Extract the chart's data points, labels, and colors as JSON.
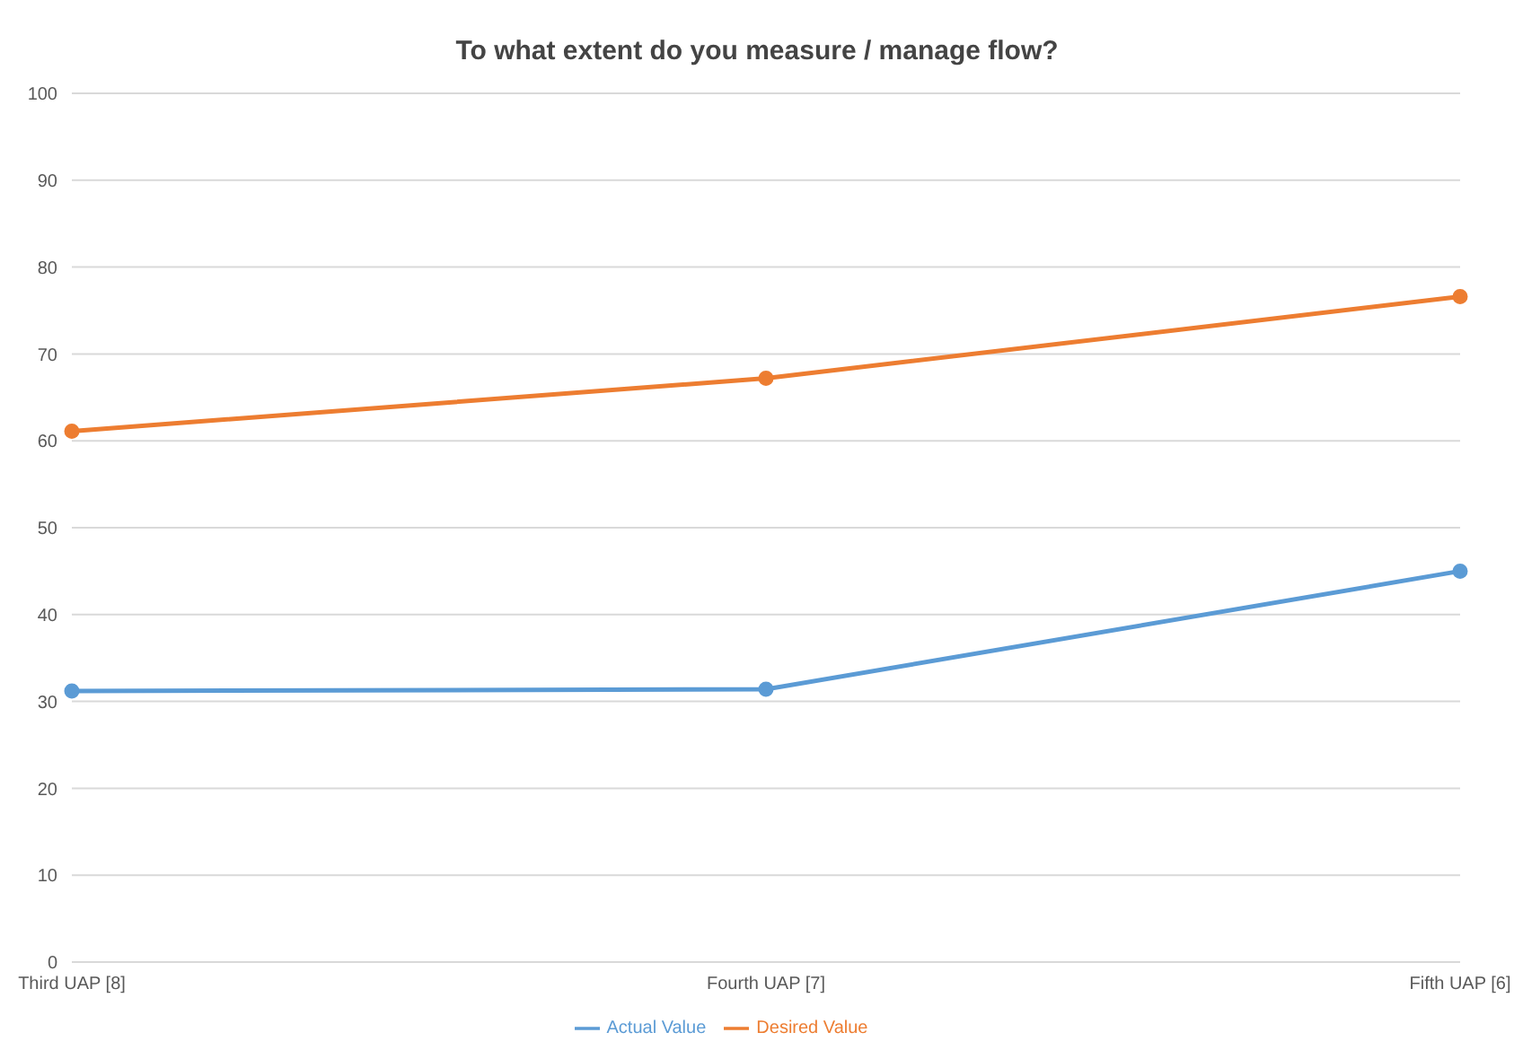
{
  "chart_data": {
    "type": "line",
    "title": "To what extent do you measure / manage flow?",
    "categories": [
      "Third UAP [8]",
      "Fourth UAP [7]",
      "Fifth UAP [6]"
    ],
    "series": [
      {
        "name": "Actual Value",
        "color": "#5b9bd5",
        "values": [
          31.2,
          31.4,
          45.0
        ]
      },
      {
        "name": "Desired Value",
        "color": "#ed7d31",
        "values": [
          61.1,
          67.2,
          76.6
        ]
      }
    ],
    "ylim": [
      0,
      100
    ],
    "yticks": [
      0,
      10,
      20,
      30,
      40,
      50,
      60,
      70,
      80,
      90,
      100
    ],
    "grid": "y",
    "legend": "bottom",
    "marker": "circle",
    "line_style": "solid"
  }
}
